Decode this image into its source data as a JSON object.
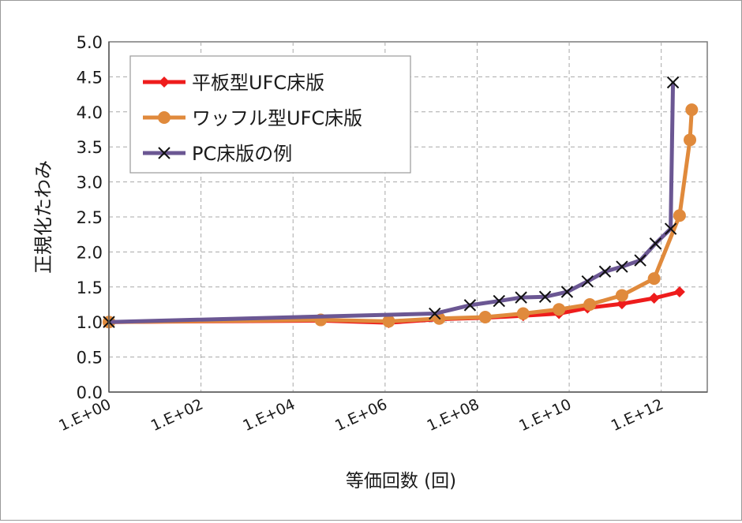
{
  "chart_data": {
    "type": "line",
    "title": "",
    "xlabel": "等価回数 (回)",
    "ylabel": "正規化たわみ",
    "x_scale": "log10",
    "xlim": [
      1,
      10000000000000.0
    ],
    "ylim": [
      0,
      5
    ],
    "x_ticks": [
      1,
      100,
      10000,
      1000000,
      100000000,
      10000000000,
      1000000000000
    ],
    "x_tick_labels": [
      "1.E+00",
      "1.E+02",
      "1.E+04",
      "1.E+06",
      "1.E+08",
      "1.E+10",
      "1.E+12"
    ],
    "y_ticks": [
      0,
      0.5,
      1,
      1.5,
      2,
      2.5,
      3,
      3.5,
      4,
      4.5,
      5
    ],
    "y_tick_labels": [
      "0.0",
      "0.5",
      "1.0",
      "1.5",
      "2.0",
      "2.5",
      "3.0",
      "3.5",
      "4.0",
      "4.5",
      "5.0"
    ],
    "grid": true,
    "legend_position": "top-left",
    "series": [
      {
        "name": "平板型UFC床版",
        "color": "#ee1c1c",
        "marker": "diamond",
        "points": [
          [
            1,
            1.0
          ],
          [
            40000,
            1.02
          ],
          [
            1200000,
            0.99
          ],
          [
            15000000,
            1.04
          ],
          [
            140000000,
            1.06
          ],
          [
            1000000000,
            1.09
          ],
          [
            6000000000,
            1.12
          ],
          [
            25000000000,
            1.2
          ],
          [
            140000000000,
            1.26
          ],
          [
            700000000000,
            1.34
          ],
          [
            2500000000000,
            1.43
          ]
        ]
      },
      {
        "name": "ワッフル型UFC床版",
        "color": "#e08a3c",
        "marker": "circle",
        "points": [
          [
            1,
            1.0
          ],
          [
            40000,
            1.03
          ],
          [
            1200000,
            1.01
          ],
          [
            15000000,
            1.05
          ],
          [
            150000000,
            1.07
          ],
          [
            1000000000,
            1.12
          ],
          [
            6000000000,
            1.18
          ],
          [
            28000000000,
            1.25
          ],
          [
            140000000000,
            1.38
          ],
          [
            700000000000,
            1.62
          ],
          [
            2500000000000,
            2.52
          ],
          [
            4200000000000,
            3.6
          ],
          [
            4600000000000,
            4.03
          ]
        ]
      },
      {
        "name": "PC床版の例",
        "color": "#6b5793",
        "marker": "x",
        "points": [
          [
            1,
            1.0
          ],
          [
            12000000,
            1.12
          ],
          [
            70000000,
            1.24
          ],
          [
            300000000,
            1.3
          ],
          [
            900000000,
            1.35
          ],
          [
            3000000000,
            1.36
          ],
          [
            9000000000,
            1.43
          ],
          [
            25000000000,
            1.58
          ],
          [
            60000000000,
            1.72
          ],
          [
            140000000000,
            1.79
          ],
          [
            350000000000,
            1.88
          ],
          [
            750000000000,
            2.12
          ],
          [
            1600000000000,
            2.33
          ],
          [
            1800000000000,
            4.42
          ]
        ]
      }
    ]
  }
}
